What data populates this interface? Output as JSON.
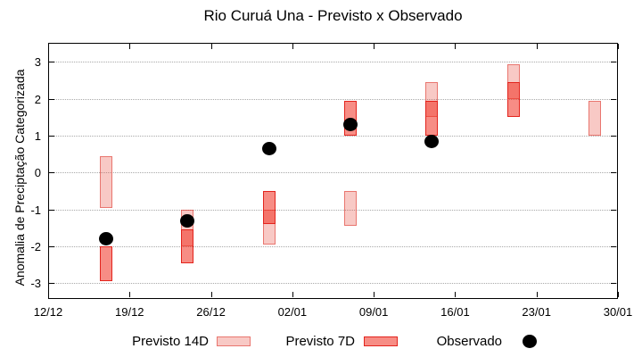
{
  "title": "Rio Curuá Una - Previsto x Observado",
  "legend": {
    "previsto_14d": "Previsto 14D",
    "previsto_7d": "Previsto 7D",
    "observado": "Observado"
  },
  "colors": {
    "p14_fill": "rgba(230,60,45,0.28)",
    "p14_border": "rgba(220,50,40,0.55)",
    "p7_fill": "rgba(240,45,30,0.54)",
    "p7_border": "#e3241d",
    "observado": "#000000",
    "grid": "#a9a9a9"
  },
  "chart_data": {
    "type": "bar",
    "subtype": "floating-range-bars-with-scatter",
    "title": "Rio Curuá Una - Previsto x Observado",
    "xlabel": "",
    "ylabel": "Anomalia de Preciptação Categorizada",
    "ylim": [
      -3.43,
      3.52
    ],
    "yticks": [
      -3,
      -2,
      -1,
      0,
      1,
      2,
      3
    ],
    "x_tick_labels": [
      "12/12",
      "19/12",
      "26/12",
      "02/01",
      "09/01",
      "16/01",
      "23/01",
      "30/01"
    ],
    "x_tick_days": [
      0,
      7,
      14,
      21,
      28,
      35,
      42,
      49
    ],
    "x_axis_span_days": 49,
    "grid": "dotted horizontal",
    "legend_position": "below plot",
    "series": [
      {
        "name": "Previsto 14D",
        "type": "range-bar",
        "points": [
          {
            "date": "17/12",
            "day": 5,
            "low": -0.95,
            "high": 0.45
          },
          {
            "date": "24/12",
            "day": 12,
            "low": -2.0,
            "high": -1.0
          },
          {
            "date": "31/12",
            "day": 19,
            "low": -1.95,
            "high": -1.0
          },
          {
            "date": "07/01",
            "day": 26,
            "low": -1.45,
            "high": -0.5
          },
          {
            "date": "14/01",
            "day": 33,
            "low": 1.5,
            "high": 2.45
          },
          {
            "date": "21/01",
            "day": 40,
            "low": 2.0,
            "high": 2.95
          },
          {
            "date": "28/01",
            "day": 47,
            "low": 1.0,
            "high": 1.95
          }
        ]
      },
      {
        "name": "Previsto 7D",
        "type": "range-bar",
        "points": [
          {
            "date": "17/12",
            "day": 5,
            "low": -2.95,
            "high": -2.0
          },
          {
            "date": "24/12",
            "day": 12,
            "low": -2.45,
            "high": -1.55
          },
          {
            "date": "31/12",
            "day": 19,
            "low": -1.4,
            "high": -0.5
          },
          {
            "date": "07/01",
            "day": 26,
            "low": 1.0,
            "high": 1.95
          },
          {
            "date": "14/01",
            "day": 33,
            "low": 1.0,
            "high": 1.95
          },
          {
            "date": "21/01",
            "day": 40,
            "low": 1.5,
            "high": 2.45
          }
        ]
      },
      {
        "name": "Observado",
        "type": "scatter",
        "points": [
          {
            "date": "17/12",
            "day": 5,
            "value": -1.8
          },
          {
            "date": "24/12",
            "day": 12,
            "value": -1.3
          },
          {
            "date": "31/12",
            "day": 19,
            "value": 0.65
          },
          {
            "date": "07/01",
            "day": 26,
            "value": 1.3
          },
          {
            "date": "14/01",
            "day": 33,
            "value": 0.85
          }
        ]
      }
    ]
  }
}
